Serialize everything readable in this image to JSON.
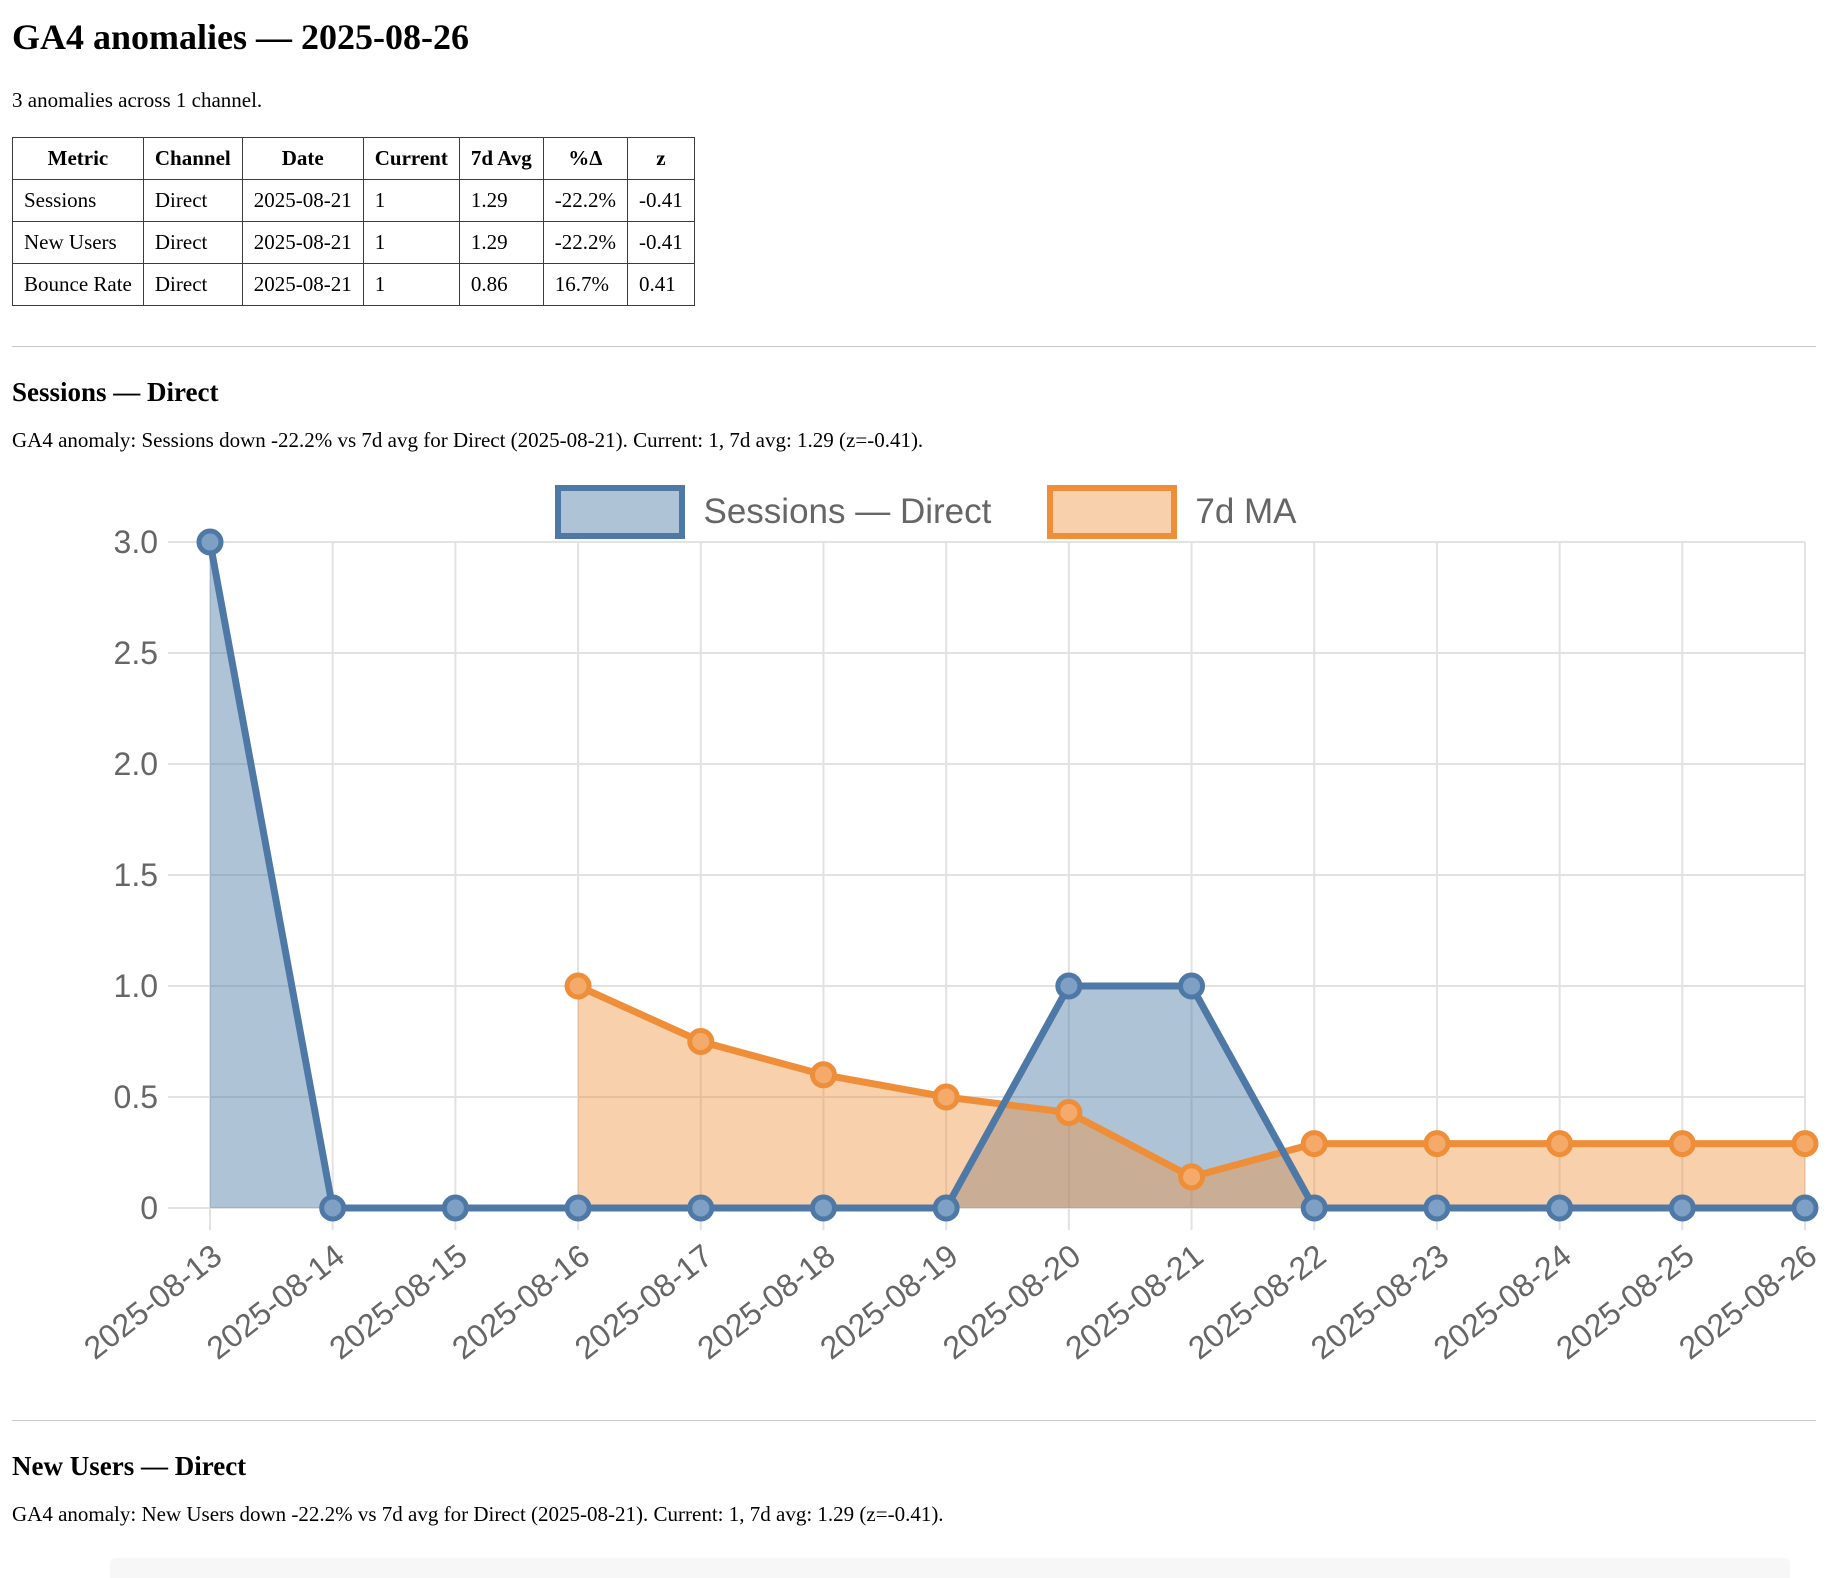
{
  "page": {
    "title": "GA4 anomalies — 2025-08-26",
    "summary": "3 anomalies across 1 channel."
  },
  "table": {
    "headers": [
      "Metric",
      "Channel",
      "Date",
      "Current",
      "7d Avg",
      "%Δ",
      "z"
    ],
    "rows": [
      [
        "Sessions",
        "Direct",
        "2025-08-21",
        "1",
        "1.29",
        "-22.2%",
        "-0.41"
      ],
      [
        "New Users",
        "Direct",
        "2025-08-21",
        "1",
        "1.29",
        "-22.2%",
        "-0.41"
      ],
      [
        "Bounce Rate",
        "Direct",
        "2025-08-21",
        "1",
        "0.86",
        "16.7%",
        "0.41"
      ]
    ]
  },
  "sections": {
    "sessions": {
      "heading": "Sessions — Direct",
      "note": "GA4 anomaly: Sessions down -22.2% vs 7d avg for Direct (2025-08-21). Current: 1, 7d avg: 1.29 (z=-0.41)."
    },
    "new_users": {
      "heading": "New Users — Direct",
      "note": "GA4 anomaly: New Users down -22.2% vs 7d avg for Direct (2025-08-21). Current: 1, 7d avg: 1.29 (z=-0.41)."
    }
  },
  "chart_data": {
    "type": "area",
    "title": "",
    "categories": [
      "2025-08-13",
      "2025-08-14",
      "2025-08-15",
      "2025-08-16",
      "2025-08-17",
      "2025-08-18",
      "2025-08-19",
      "2025-08-20",
      "2025-08-21",
      "2025-08-22",
      "2025-08-23",
      "2025-08-24",
      "2025-08-25",
      "2025-08-26"
    ],
    "series": [
      {
        "name": "Sessions — Direct",
        "color": "#4e79a7",
        "fill": "rgba(78,121,167,0.45)",
        "marker_fill": "#7da0c4",
        "values": [
          3,
          0,
          0,
          0,
          0,
          0,
          0,
          1,
          1,
          0,
          0,
          0,
          0,
          0
        ]
      },
      {
        "name": "7d MA",
        "color": "#ef8e39",
        "fill": "rgba(239,142,57,0.42)",
        "marker_fill": "#f4aa6b",
        "values": [
          null,
          null,
          null,
          1.0,
          0.75,
          0.6,
          0.5,
          0.43,
          0.14,
          0.29,
          0.29,
          0.29,
          0.29,
          0.29
        ]
      }
    ],
    "xlabel": "",
    "ylabel": "",
    "ylim": [
      0,
      3
    ],
    "yticks": [
      0,
      0.5,
      1.0,
      1.5,
      2.0,
      2.5,
      3.0
    ],
    "grid": true,
    "legend_position": "top",
    "tick_color": "#666666",
    "grid_color": "#e2e2e2"
  }
}
